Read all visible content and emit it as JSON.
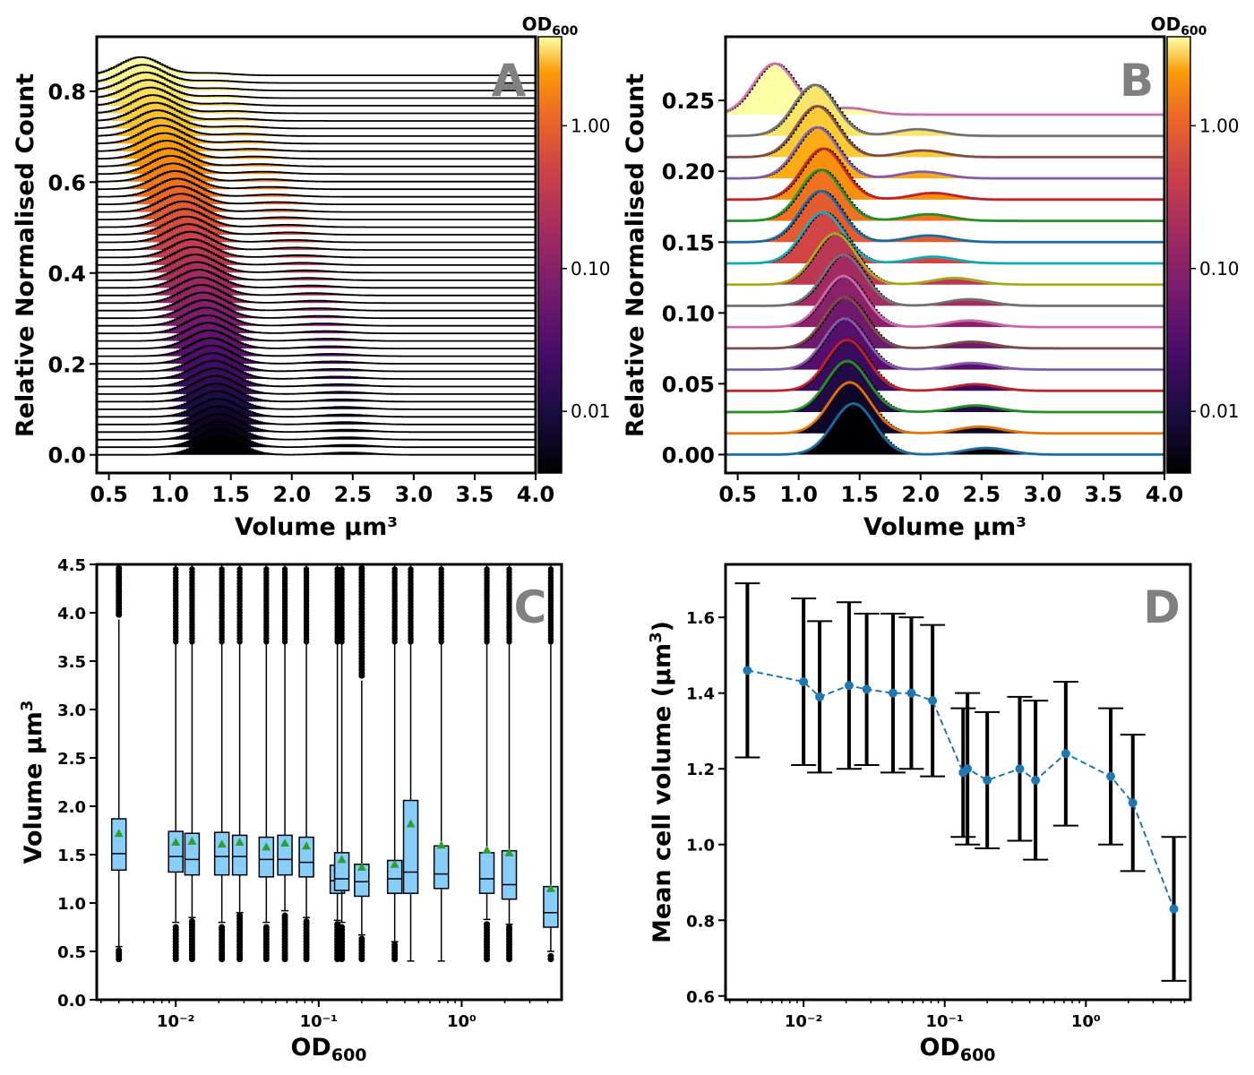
{
  "chart_data": [
    {
      "type": "line",
      "panel": "A",
      "xlabel": "Volume μm³",
      "ylabel": "Relative Normalised Count",
      "xlim": [
        0.4,
        4.0
      ],
      "ylim": [
        -0.04,
        0.92
      ],
      "xticks": [
        "0.5",
        "1.0",
        "1.5",
        "2.0",
        "2.5",
        "3.0",
        "3.5",
        "4.0"
      ],
      "yticks": [
        "0.0",
        "0.2",
        "0.4",
        "0.6",
        "0.8"
      ],
      "n_curves": 51,
      "curve_offset_step": 0.0167,
      "peak_volume_low_od": 1.4,
      "peak_volume_high_od": 0.75,
      "colorbar": {
        "label": "OD₆₀₀",
        "scale": "log",
        "ticks": [
          "0.01",
          "0.10",
          "1.00"
        ],
        "colormap": "inferno"
      }
    },
    {
      "type": "line",
      "panel": "B",
      "xlabel": "Volume μm³",
      "ylabel": "Relative Normalised Count",
      "xlim": [
        0.4,
        4.0
      ],
      "ylim": [
        -0.013,
        0.295
      ],
      "xticks": [
        "0.5",
        "1.0",
        "1.5",
        "2.0",
        "2.5",
        "3.0",
        "3.5",
        "4.0"
      ],
      "yticks": [
        "0.00",
        "0.05",
        "0.10",
        "0.15",
        "0.20",
        "0.25"
      ],
      "n_curves": 17,
      "curve_offset_step": 0.015,
      "peak_volumes": [
        1.45,
        1.42,
        1.4,
        1.4,
        1.38,
        1.38,
        1.37,
        1.37,
        1.3,
        1.2,
        1.18,
        1.18,
        1.2,
        1.15,
        1.15,
        1.13,
        0.8
      ],
      "fit_colors": [
        "#1f77b4",
        "#ff7f0e",
        "#2ca02c",
        "#d62728",
        "#9467bd",
        "#8c564b",
        "#e377c2",
        "#7f7f7f",
        "#bcbd22",
        "#17becf",
        "#1f77b4",
        "#2ca02c",
        "#d62728",
        "#9467bd",
        "#8c564b",
        "#7f7f7f",
        "#e377c2"
      ],
      "colorbar": {
        "label": "OD₆₀₀",
        "scale": "log",
        "ticks": [
          "0.01",
          "0.10",
          "1.00"
        ],
        "colormap": "inferno"
      }
    },
    {
      "type": "box",
      "panel": "C",
      "xlabel": "OD₆₀₀",
      "ylabel": "Volume μm³",
      "xscale": "log",
      "xlim": [
        0.0028,
        5.0
      ],
      "ylim": [
        0.0,
        4.5
      ],
      "yticks": [
        "0.0",
        "0.5",
        "1.0",
        "1.5",
        "2.0",
        "2.5",
        "3.0",
        "3.5",
        "4.0",
        "4.5"
      ],
      "xticks": [
        "10⁻²",
        "10⁻¹",
        "10⁰"
      ],
      "boxes": [
        {
          "od": 0.004,
          "q1": 1.34,
          "median": 1.51,
          "q3": 1.87,
          "mean": 1.72,
          "whisker_low": 0.55,
          "whisker_high": 3.93
        },
        {
          "od": 0.01,
          "q1": 1.32,
          "median": 1.48,
          "q3": 1.74,
          "mean": 1.63,
          "whisker_low": 0.8,
          "whisker_high": 4.5
        },
        {
          "od": 0.013,
          "q1": 1.29,
          "median": 1.45,
          "q3": 1.72,
          "mean": 1.64,
          "whisker_low": 0.85,
          "whisker_high": 4.5
        },
        {
          "od": 0.021,
          "q1": 1.29,
          "median": 1.48,
          "q3": 1.73,
          "mean": 1.61,
          "whisker_low": 0.8,
          "whisker_high": 4.5
        },
        {
          "od": 0.028,
          "q1": 1.29,
          "median": 1.48,
          "q3": 1.7,
          "mean": 1.63,
          "whisker_low": 0.9,
          "whisker_high": 4.5
        },
        {
          "od": 0.043,
          "q1": 1.27,
          "median": 1.45,
          "q3": 1.68,
          "mean": 1.58,
          "whisker_low": 0.8,
          "whisker_high": 4.5
        },
        {
          "od": 0.058,
          "q1": 1.29,
          "median": 1.45,
          "q3": 1.7,
          "mean": 1.62,
          "whisker_low": 0.92,
          "whisker_high": 4.5
        },
        {
          "od": 0.082,
          "q1": 1.27,
          "median": 1.42,
          "q3": 1.68,
          "mean": 1.59,
          "whisker_low": 0.85,
          "whisker_high": 4.5
        },
        {
          "od": 0.135,
          "q1": 1.1,
          "median": 1.23,
          "q3": 1.39,
          "mean": 1.36,
          "whisker_low": 0.82,
          "whisker_high": 4.5
        },
        {
          "od": 0.145,
          "q1": 1.13,
          "median": 1.25,
          "q3": 1.52,
          "mean": 1.45,
          "whisker_low": 0.8,
          "whisker_high": 4.5
        },
        {
          "od": 0.2,
          "q1": 1.07,
          "median": 1.22,
          "q3": 1.4,
          "mean": 1.37,
          "whisker_low": 0.67,
          "whisker_high": 3.3
        },
        {
          "od": 0.34,
          "q1": 1.1,
          "median": 1.25,
          "q3": 1.44,
          "mean": 1.4,
          "whisker_low": 0.6,
          "whisker_high": 4.5
        },
        {
          "od": 0.44,
          "q1": 1.1,
          "median": 1.32,
          "q3": 2.06,
          "mean": 1.82,
          "whisker_low": 0.4,
          "whisker_high": 4.5
        },
        {
          "od": 0.72,
          "q1": 1.15,
          "median": 1.3,
          "q3": 1.59,
          "mean": 1.6,
          "whisker_low": 0.4,
          "whisker_high": 4.5
        },
        {
          "od": 1.5,
          "q1": 1.1,
          "median": 1.25,
          "q3": 1.52,
          "mean": 1.55,
          "whisker_low": 0.83,
          "whisker_high": 4.5
        },
        {
          "od": 2.15,
          "q1": 1.04,
          "median": 1.19,
          "q3": 1.54,
          "mean": 1.52,
          "whisker_low": 0.78,
          "whisker_high": 4.5
        },
        {
          "od": 4.2,
          "q1": 0.75,
          "median": 0.9,
          "q3": 1.17,
          "mean": 1.15,
          "whisker_low": 0.5,
          "whisker_high": 4.5
        }
      ]
    },
    {
      "type": "line",
      "panel": "D",
      "xlabel": "OD₆₀₀",
      "ylabel": "Mean cell volume (μm³)",
      "xscale": "log",
      "xlim": [
        0.0028,
        5.5
      ],
      "ylim": [
        0.59,
        1.74
      ],
      "yticks": [
        "0.6",
        "0.8",
        "1.0",
        "1.2",
        "1.4",
        "1.6"
      ],
      "xticks": [
        "10⁻²",
        "10⁻¹",
        "10⁰"
      ],
      "series": [
        {
          "x": [
            0.004,
            0.01,
            0.013,
            0.021,
            0.028,
            0.043,
            0.058,
            0.082,
            0.135,
            0.145,
            0.2,
            0.34,
            0.44,
            0.72,
            1.5,
            2.15,
            4.2
          ],
          "y": [
            1.46,
            1.43,
            1.39,
            1.42,
            1.41,
            1.4,
            1.4,
            1.38,
            1.19,
            1.2,
            1.17,
            1.2,
            1.17,
            1.24,
            1.18,
            1.11,
            0.83
          ],
          "yerr_low": [
            1.23,
            1.21,
            1.19,
            1.2,
            1.21,
            1.19,
            1.2,
            1.18,
            1.02,
            1.0,
            0.99,
            1.01,
            0.96,
            1.05,
            1.0,
            0.93,
            0.64
          ],
          "yerr_high": [
            1.69,
            1.65,
            1.59,
            1.64,
            1.61,
            1.61,
            1.6,
            1.58,
            1.36,
            1.4,
            1.35,
            1.39,
            1.38,
            1.43,
            1.36,
            1.29,
            1.02
          ],
          "color": "#1f77b4",
          "linestyle": "dashed"
        }
      ]
    }
  ]
}
